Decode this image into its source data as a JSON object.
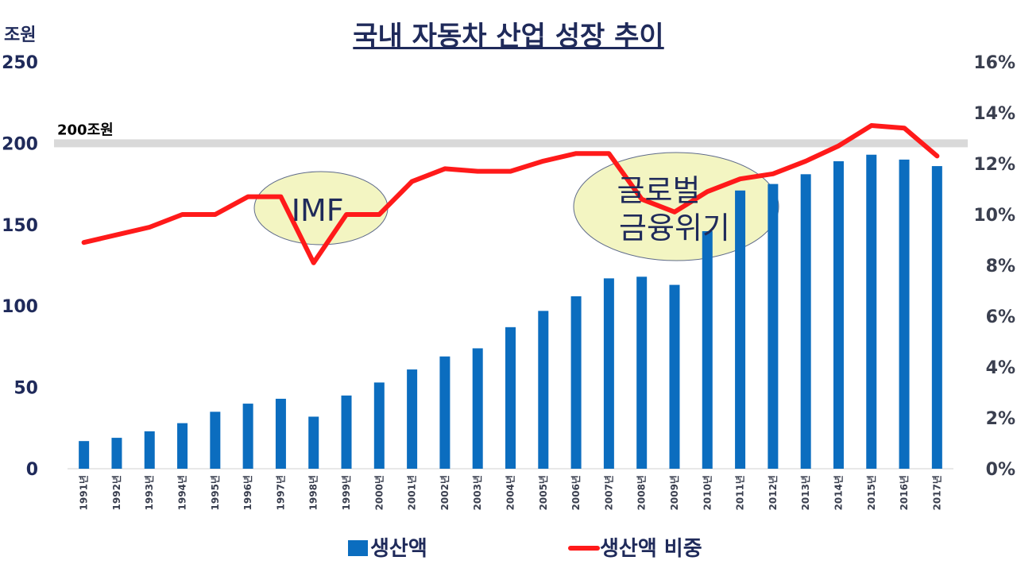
{
  "chart_data": {
    "type": "bar+line",
    "title": "국내 자동차 산업 성장 추이",
    "left_axis_unit": "조원",
    "categories": [
      "1991년",
      "1992년",
      "1993년",
      "1994년",
      "1995년",
      "1996년",
      "1997년",
      "1998년",
      "1999년",
      "2000년",
      "2001년",
      "2002년",
      "2003년",
      "2004년",
      "2005년",
      "2006년",
      "2007년",
      "2008년",
      "2009년",
      "2010년",
      "2011년",
      "2012년",
      "2013년",
      "2014년",
      "2015년",
      "2016년",
      "2017년"
    ],
    "series": [
      {
        "name": "생산액",
        "type": "bar",
        "axis": "left",
        "color": "#0b6dbf",
        "values": [
          17,
          19,
          23,
          28,
          35,
          40,
          43,
          32,
          45,
          53,
          61,
          69,
          74,
          87,
          97,
          106,
          117,
          118,
          113,
          146,
          171,
          175,
          181,
          189,
          193,
          190,
          186
        ]
      },
      {
        "name": "생산액 비중",
        "type": "line",
        "axis": "right",
        "color": "#ff1a1a",
        "values": [
          8.9,
          9.2,
          9.5,
          10.0,
          10.0,
          10.7,
          10.7,
          8.1,
          10.0,
          10.0,
          11.3,
          11.8,
          11.7,
          11.7,
          12.1,
          12.4,
          12.4,
          10.6,
          10.1,
          10.9,
          11.4,
          11.6,
          12.1,
          12.7,
          13.5,
          13.4,
          12.3
        ]
      }
    ],
    "ylim_left": [
      0,
      250
    ],
    "yticks_left": [
      "0",
      "50",
      "100",
      "150",
      "200",
      "250"
    ],
    "ylim_right": [
      0,
      16
    ],
    "yticks_right": [
      "0%",
      "2%",
      "4%",
      "6%",
      "8%",
      "10%",
      "12%",
      "14%",
      "16%"
    ],
    "reference_line": {
      "value": 200,
      "label": "200조원",
      "color": "#d9d9d9"
    },
    "annotations": [
      {
        "text": [
          "IMF"
        ],
        "category": "1998년"
      },
      {
        "text": [
          "글로벌",
          "금융위기"
        ],
        "category": "2009년"
      }
    ],
    "legend": {
      "position": "bottom",
      "items": [
        "생산액",
        "생산액 비중"
      ]
    },
    "grid": false
  }
}
